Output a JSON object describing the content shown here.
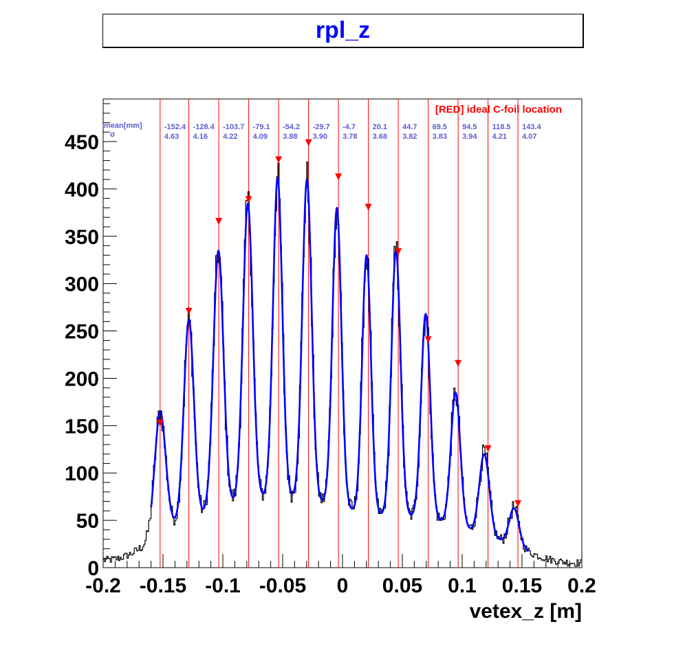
{
  "title": "rpl_z",
  "colors": {
    "title": "#0000ff",
    "histogram": "#000000",
    "fit": "#0000ff",
    "ideal": "#ff0000",
    "peak_text": "#5b5bd6"
  },
  "chart_data": {
    "type": "line",
    "title": "rpl_z",
    "xlabel": "vetex_z [m]",
    "ylabel": "",
    "xlim": [
      -0.2,
      0.2
    ],
    "ylim": [
      0,
      495
    ],
    "grid": false,
    "x_ticks": [
      "-0.2",
      "-0.15",
      "-0.1",
      "-0.05",
      "0",
      "0.05",
      "0.1",
      "0.15",
      "0.2"
    ],
    "y_ticks": [
      "0",
      "50",
      "100",
      "150",
      "200",
      "250",
      "300",
      "350",
      "400",
      "450"
    ],
    "legend_text": "[RED] ideal C-foil location",
    "row_labels": {
      "mean": "mean[mm]",
      "sigma": "σ"
    },
    "ideal_foil_z": [
      -0.1524,
      -0.1284,
      -0.1034,
      -0.0784,
      -0.0534,
      -0.0284,
      -0.0034,
      0.0216,
      0.0466,
      0.0716,
      0.0966,
      0.1216,
      0.1466
    ],
    "peaks": [
      {
        "mean": "-152.4",
        "sigma": "4.63",
        "amp": 165,
        "background": 40,
        "marker_y": 152
      },
      {
        "mean": "-128.4",
        "sigma": "4.16",
        "amp": 262,
        "background": 50,
        "marker_y": 270
      },
      {
        "mean": "-103.7",
        "sigma": "4.22",
        "amp": 335,
        "background": 62,
        "marker_y": 365
      },
      {
        "mean": "-79.1",
        "sigma": "4.09",
        "amp": 385,
        "background": 72,
        "marker_y": 388
      },
      {
        "mean": "-54.2",
        "sigma": "3.88",
        "amp": 412,
        "background": 75,
        "marker_y": 430
      },
      {
        "mean": "-29.7",
        "sigma": "3.90",
        "amp": 410,
        "background": 72,
        "marker_y": 448
      },
      {
        "mean": "-4.7",
        "sigma": "3.78",
        "amp": 380,
        "background": 65,
        "marker_y": 412
      },
      {
        "mean": "20.1",
        "sigma": "3.68",
        "amp": 330,
        "background": 55,
        "marker_y": 380
      },
      {
        "mean": "44.7",
        "sigma": "3.82",
        "amp": 335,
        "background": 55,
        "marker_y": 333
      },
      {
        "mean": "69.5",
        "sigma": "3.83",
        "amp": 268,
        "background": 52,
        "marker_y": 240
      },
      {
        "mean": "94.5",
        "sigma": "3.94",
        "amp": 185,
        "background": 45,
        "marker_y": 215
      },
      {
        "mean": "118.5",
        "sigma": "4.21",
        "amp": 120,
        "background": 33,
        "marker_y": 125
      },
      {
        "mean": "143.4",
        "sigma": "4.07",
        "amp": 63,
        "background": 25,
        "marker_y": 67
      }
    ]
  }
}
